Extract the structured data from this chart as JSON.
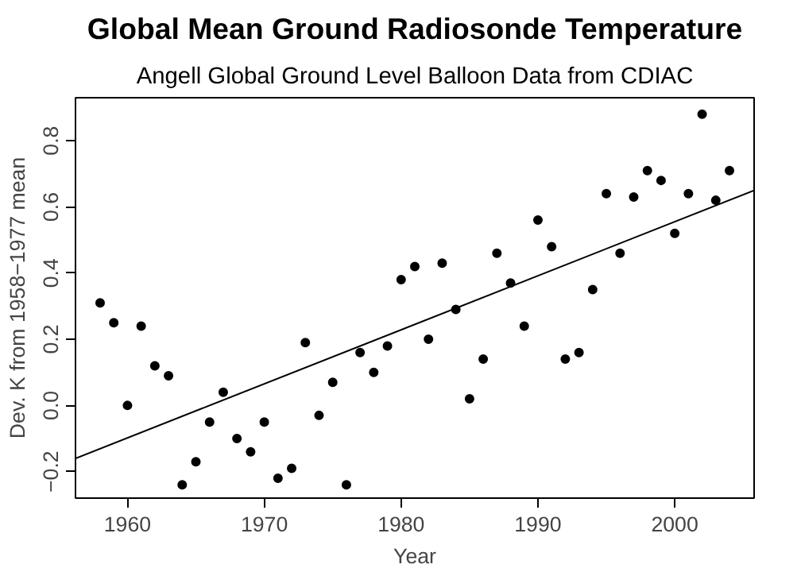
{
  "chart_data": {
    "type": "scatter",
    "title": "Global Mean Ground Radiosonde Temperature",
    "subtitle": "Angell Global Ground Level Balloon Data from CDIAC",
    "xlabel": "Year",
    "ylabel": "Dev. K from 1958−1977 mean",
    "x": [
      1958,
      1959,
      1960,
      1961,
      1962,
      1963,
      1964,
      1965,
      1966,
      1967,
      1968,
      1969,
      1970,
      1971,
      1972,
      1973,
      1974,
      1975,
      1976,
      1977,
      1978,
      1979,
      1980,
      1981,
      1982,
      1983,
      1984,
      1985,
      1986,
      1987,
      1988,
      1989,
      1990,
      1991,
      1992,
      1993,
      1994,
      1995,
      1996,
      1997,
      1998,
      1999,
      2000,
      2001,
      2002,
      2003,
      2004
    ],
    "series": [
      {
        "color": "#000000",
        "marker": "circle",
        "values": [
          0.31,
          0.25,
          0.0,
          0.24,
          0.12,
          0.09,
          -0.24,
          -0.17,
          -0.05,
          0.04,
          -0.1,
          -0.14,
          -0.05,
          -0.22,
          -0.19,
          0.19,
          -0.03,
          0.07,
          -0.24,
          0.16,
          0.1,
          0.18,
          0.38,
          0.42,
          0.2,
          0.43,
          0.29,
          0.02,
          0.14,
          0.46,
          0.37,
          0.24,
          0.56,
          0.48,
          0.14,
          0.16,
          0.35,
          0.64,
          0.46,
          0.63,
          0.71,
          0.68,
          0.52,
          0.64,
          0.88,
          0.62,
          0.71
        ]
      },
      {
        "type": "line",
        "color": "#000000",
        "x": [
          1956.2,
          2005.8
        ],
        "values": [
          -0.16,
          0.65
        ]
      }
    ],
    "xlim": [
      1956.2,
      2005.8
    ],
    "ylim": [
      -0.28,
      0.93
    ],
    "xticks": [
      1960,
      1970,
      1980,
      1990,
      2000
    ],
    "yticks": [
      {
        "value": -0.2,
        "label": "−0.2"
      },
      {
        "value": 0.0,
        "label": "0.0"
      },
      {
        "value": 0.2,
        "label": "0.2"
      },
      {
        "value": 0.4,
        "label": "0.4"
      },
      {
        "value": 0.6,
        "label": "0.6"
      },
      {
        "value": 0.8,
        "label": "0.8"
      }
    ],
    "grid": false
  }
}
